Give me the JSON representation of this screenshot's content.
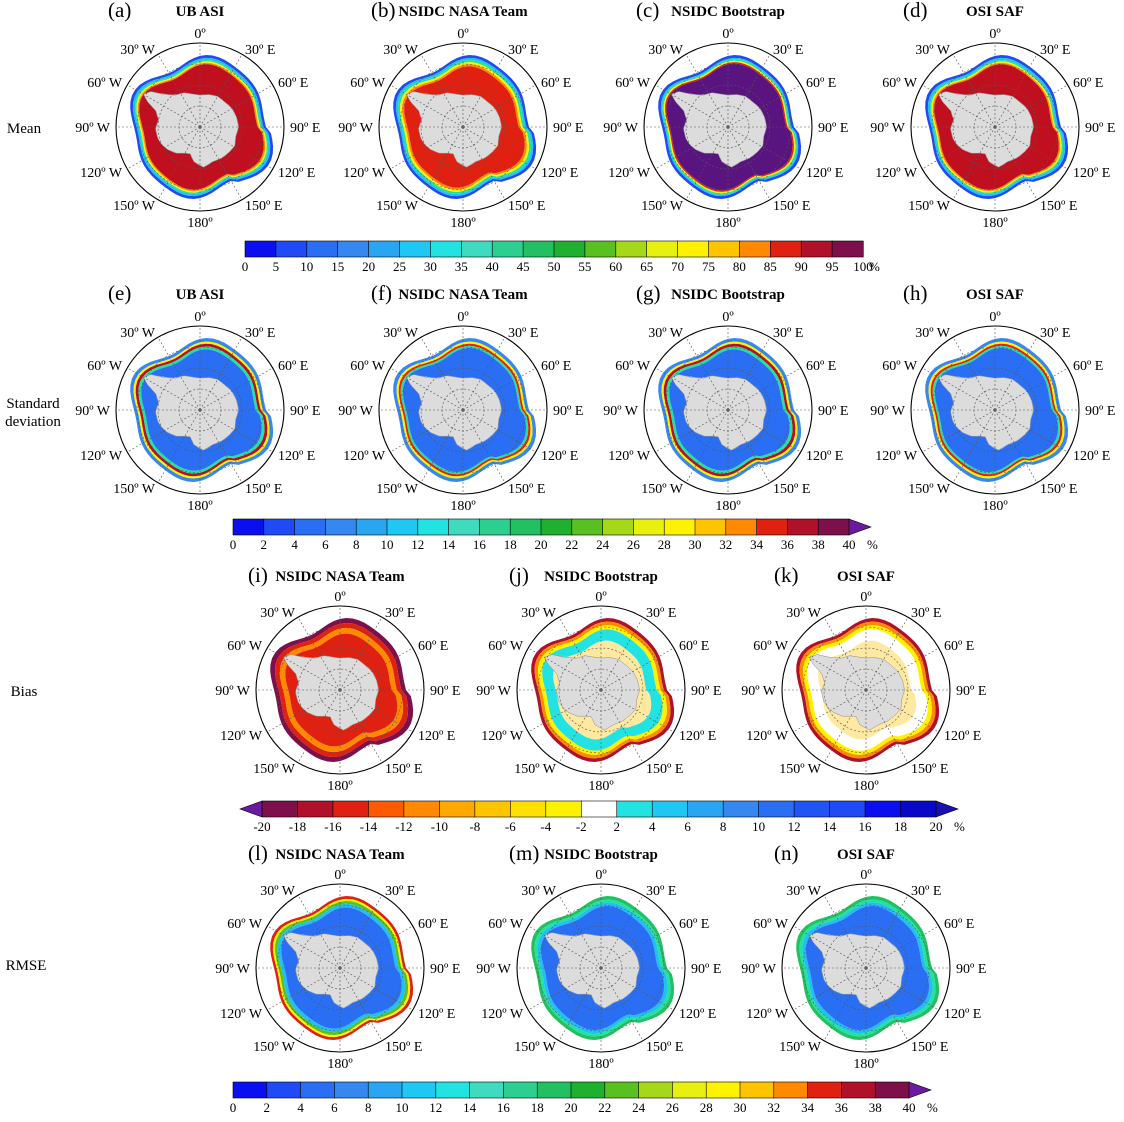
{
  "figure": {
    "rows": [
      {
        "row_label": "Mean",
        "panels": [
          {
            "letter": "(a)",
            "title": "UB ASI",
            "variant": "mean-ub"
          },
          {
            "letter": "(b)",
            "title": "NSIDC NASA Team",
            "variant": "mean-nt"
          },
          {
            "letter": "(c)",
            "title": "NSIDC Bootstrap",
            "variant": "mean-bt"
          },
          {
            "letter": "(d)",
            "title": "OSI SAF",
            "variant": "mean-osi"
          }
        ],
        "colorbar": {
          "ticks": [
            "0",
            "5",
            "10",
            "15",
            "20",
            "25",
            "30",
            "35",
            "40",
            "45",
            "50",
            "55",
            "60",
            "65",
            "70",
            "75",
            "80",
            "85",
            "90",
            "95",
            "100"
          ],
          "unit": "%",
          "colors": [
            "#0a0ff0",
            "#1f4af5",
            "#2a6ff3",
            "#3688f0",
            "#2aa5f2",
            "#1fc8f2",
            "#22e2e2",
            "#3fdac0",
            "#2ccf90",
            "#22c060",
            "#1fb030",
            "#58c020",
            "#a6d81a",
            "#e8f010",
            "#fff200",
            "#ffc400",
            "#ff8a00",
            "#e02010",
            "#b0102a",
            "#7d0f4a"
          ],
          "arrow_left": false,
          "arrow_right": false
        }
      },
      {
        "row_label": "Standard deviation",
        "panels": [
          {
            "letter": "(e)",
            "title": "UB ASI",
            "variant": "std-ub"
          },
          {
            "letter": "(f)",
            "title": "NSIDC NASA Team",
            "variant": "std-nt"
          },
          {
            "letter": "(g)",
            "title": "NSIDC Bootstrap",
            "variant": "std-bt"
          },
          {
            "letter": "(h)",
            "title": "OSI SAF",
            "variant": "std-osi"
          }
        ],
        "colorbar": {
          "ticks": [
            "0",
            "2",
            "4",
            "6",
            "8",
            "10",
            "12",
            "14",
            "16",
            "18",
            "20",
            "22",
            "24",
            "26",
            "28",
            "30",
            "32",
            "34",
            "36",
            "38",
            "40"
          ],
          "unit": "%",
          "colors": [
            "#0a0ff0",
            "#1f4af5",
            "#2a6ff3",
            "#3688f0",
            "#2aa5f2",
            "#1fc8f2",
            "#22e2e2",
            "#3fdac0",
            "#2ccf90",
            "#22c060",
            "#1fb030",
            "#58c020",
            "#a6d81a",
            "#e8f010",
            "#fff200",
            "#ffc400",
            "#ff8a00",
            "#e02010",
            "#b0102a",
            "#7d0f4a"
          ],
          "arrow_left": false,
          "arrow_right": true,
          "arrow_right_color": "#6a1aa0"
        }
      },
      {
        "row_label": "Bias",
        "panels": [
          {
            "letter": "(i)",
            "title": "NSIDC NASA Team",
            "variant": "bias-nt"
          },
          {
            "letter": "(j)",
            "title": "NSIDC Bootstrap",
            "variant": "bias-bt"
          },
          {
            "letter": "(k)",
            "title": "OSI SAF",
            "variant": "bias-osi"
          }
        ],
        "colorbar": {
          "ticks": [
            "-20",
            "-18",
            "-16",
            "-14",
            "-12",
            "-10",
            "-8",
            "-6",
            "-4",
            "-2",
            "2",
            "4",
            "6",
            "8",
            "10",
            "12",
            "14",
            "16",
            "18",
            "20"
          ],
          "unit": "%",
          "colors": [
            "#7d0f4a",
            "#b0102a",
            "#e02010",
            "#ff5a00",
            "#ff8a00",
            "#ffa800",
            "#ffc400",
            "#ffe000",
            "#fff200",
            "#ffffff",
            "#22e2e2",
            "#1fc8f2",
            "#2aa5f2",
            "#3688f0",
            "#2a6ff3",
            "#1f55f5",
            "#1f4af5",
            "#0a0ff0",
            "#0808c8"
          ],
          "arrow_left": true,
          "arrow_left_color": "#6a1aa0",
          "arrow_right": true,
          "arrow_right_color": "#1a10b0"
        }
      },
      {
        "row_label": "RMSE",
        "panels": [
          {
            "letter": "(l)",
            "title": "NSIDC NASA Team",
            "variant": "rmse-nt"
          },
          {
            "letter": "(m)",
            "title": "NSIDC Bootstrap",
            "variant": "rmse-bt"
          },
          {
            "letter": "(n)",
            "title": "OSI SAF",
            "variant": "rmse-osi"
          }
        ],
        "colorbar": {
          "ticks": [
            "0",
            "2",
            "4",
            "6",
            "8",
            "10",
            "12",
            "14",
            "16",
            "18",
            "20",
            "22",
            "24",
            "26",
            "28",
            "30",
            "32",
            "34",
            "36",
            "38",
            "40"
          ],
          "unit": "%",
          "colors": [
            "#0a0ff0",
            "#1f4af5",
            "#2a6ff3",
            "#3688f0",
            "#2aa5f2",
            "#1fc8f2",
            "#22e2e2",
            "#3fdac0",
            "#2ccf90",
            "#22c060",
            "#1fb030",
            "#58c020",
            "#a6d81a",
            "#e8f010",
            "#fff200",
            "#ffc400",
            "#ff8a00",
            "#e02010",
            "#b0102a",
            "#7d0f4a"
          ],
          "arrow_left": false,
          "arrow_right": true,
          "arrow_right_color": "#6a1aa0"
        }
      }
    ],
    "map_labels": {
      "top": "0º",
      "bottom": "180º",
      "left": [
        "30º W",
        "60º W",
        "90º W",
        "120º W",
        "150º W"
      ],
      "right": [
        "30º E",
        "60º E",
        "90º E",
        "120º E",
        "150º E"
      ]
    },
    "colors": {
      "land": "#dcdcdc",
      "grid": "#555555",
      "frame": "#000000"
    }
  }
}
